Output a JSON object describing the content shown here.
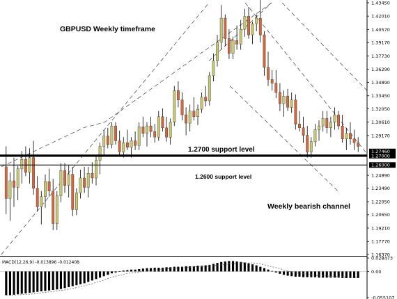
{
  "chart_data": {
    "type": "candlestick",
    "title": "GBPUSD Weekly timeframe",
    "price_axis": {
      "ticks": [
        "1.43450",
        "1.42010",
        "1.40570",
        "1.39170",
        "1.37730",
        "1.36290",
        "1.34890",
        "1.33450",
        "1.32050",
        "1.30610",
        "1.29170",
        "1.27460",
        "1.27000",
        "1.26000",
        "1.24890",
        "1.23490",
        "1.22050",
        "1.20650",
        "1.19210",
        "1.17770",
        "1.16370"
      ],
      "ylim": [
        1.1637,
        1.4345
      ],
      "highlighted": [
        "1.27460",
        "1.27000",
        "1.26000"
      ]
    },
    "annotations": {
      "support_1": "1.2700 support level",
      "support_2": "1.2600 support level",
      "channel": "Weekly bearish channel"
    },
    "support_levels": [
      1.27,
      1.26
    ],
    "macd": {
      "label": "MACD(12,26,9) -0.013896 -0.012408",
      "ticks": [
        "0.028473",
        "0.00",
        "-0.055107"
      ],
      "ylim": [
        -0.055107,
        0.028473
      ]
    },
    "colors": {
      "bull": "#c8c86e",
      "bear": "#d2693c",
      "wick": "#000000",
      "support": "#000000",
      "channel": "#555555",
      "macd_hist": "#000000"
    },
    "candles": [
      [
        1.258,
        1.28,
        1.207,
        1.224
      ],
      [
        1.224,
        1.252,
        1.2,
        1.243
      ],
      [
        1.243,
        1.268,
        1.215,
        1.236
      ],
      [
        1.236,
        1.259,
        1.222,
        1.256
      ],
      [
        1.256,
        1.275,
        1.24,
        1.266
      ],
      [
        1.266,
        1.28,
        1.248,
        1.252
      ],
      [
        1.252,
        1.278,
        1.24,
        1.268
      ],
      [
        1.268,
        1.286,
        1.228,
        1.235
      ],
      [
        1.235,
        1.248,
        1.21,
        1.215
      ],
      [
        1.215,
        1.232,
        1.196,
        1.226
      ],
      [
        1.226,
        1.25,
        1.214,
        1.242
      ],
      [
        1.242,
        1.256,
        1.226,
        1.232
      ],
      [
        1.232,
        1.245,
        1.19,
        1.197
      ],
      [
        1.197,
        1.232,
        1.19,
        1.227
      ],
      [
        1.227,
        1.262,
        1.22,
        1.254
      ],
      [
        1.254,
        1.262,
        1.23,
        1.238
      ],
      [
        1.238,
        1.26,
        1.225,
        1.25
      ],
      [
        1.25,
        1.258,
        1.205,
        1.212
      ],
      [
        1.212,
        1.235,
        1.206,
        1.23
      ],
      [
        1.23,
        1.255,
        1.224,
        1.246
      ],
      [
        1.246,
        1.258,
        1.23,
        1.236
      ],
      [
        1.236,
        1.258,
        1.225,
        1.251
      ],
      [
        1.251,
        1.263,
        1.24,
        1.246
      ],
      [
        1.246,
        1.27,
        1.238,
        1.265
      ],
      [
        1.265,
        1.284,
        1.25,
        1.28
      ],
      [
        1.28,
        1.298,
        1.27,
        1.291
      ],
      [
        1.291,
        1.3,
        1.278,
        1.282
      ],
      [
        1.282,
        1.306,
        1.278,
        1.302
      ],
      [
        1.302,
        1.306,
        1.282,
        1.286
      ],
      [
        1.286,
        1.297,
        1.27,
        1.274
      ],
      [
        1.274,
        1.29,
        1.268,
        1.284
      ],
      [
        1.284,
        1.298,
        1.276,
        1.279
      ],
      [
        1.279,
        1.29,
        1.268,
        1.286
      ],
      [
        1.286,
        1.296,
        1.276,
        1.281
      ],
      [
        1.281,
        1.306,
        1.276,
        1.301
      ],
      [
        1.301,
        1.312,
        1.29,
        1.294
      ],
      [
        1.294,
        1.306,
        1.28,
        1.302
      ],
      [
        1.302,
        1.312,
        1.29,
        1.296
      ],
      [
        1.296,
        1.304,
        1.284,
        1.29
      ],
      [
        1.29,
        1.318,
        1.286,
        1.312
      ],
      [
        1.312,
        1.321,
        1.296,
        1.3
      ],
      [
        1.3,
        1.312,
        1.285,
        1.29
      ],
      [
        1.29,
        1.31,
        1.282,
        1.306
      ],
      [
        1.306,
        1.345,
        1.302,
        1.34
      ],
      [
        1.34,
        1.35,
        1.322,
        1.33
      ],
      [
        1.33,
        1.338,
        1.308,
        1.314
      ],
      [
        1.314,
        1.322,
        1.292,
        1.305
      ],
      [
        1.305,
        1.325,
        1.296,
        1.318
      ],
      [
        1.318,
        1.333,
        1.308,
        1.312
      ],
      [
        1.312,
        1.325,
        1.303,
        1.32
      ],
      [
        1.32,
        1.338,
        1.316,
        1.333
      ],
      [
        1.333,
        1.345,
        1.323,
        1.329
      ],
      [
        1.329,
        1.36,
        1.324,
        1.356
      ],
      [
        1.356,
        1.38,
        1.35,
        1.372
      ],
      [
        1.372,
        1.4,
        1.366,
        1.392
      ],
      [
        1.392,
        1.432,
        1.385,
        1.418
      ],
      [
        1.418,
        1.422,
        1.388,
        1.396
      ],
      [
        1.396,
        1.406,
        1.374,
        1.38
      ],
      [
        1.38,
        1.398,
        1.374,
        1.394
      ],
      [
        1.394,
        1.41,
        1.384,
        1.39
      ],
      [
        1.39,
        1.416,
        1.384,
        1.406
      ],
      [
        1.406,
        1.428,
        1.398,
        1.42
      ],
      [
        1.42,
        1.43,
        1.396,
        1.4
      ],
      [
        1.4,
        1.414,
        1.39,
        1.412
      ],
      [
        1.412,
        1.422,
        1.404,
        1.418
      ],
      [
        1.418,
        1.438,
        1.392,
        1.4
      ],
      [
        1.4,
        1.404,
        1.356,
        1.365
      ],
      [
        1.365,
        1.382,
        1.345,
        1.352
      ],
      [
        1.352,
        1.362,
        1.34,
        1.348
      ],
      [
        1.348,
        1.362,
        1.332,
        1.338
      ],
      [
        1.338,
        1.348,
        1.318,
        1.326
      ],
      [
        1.326,
        1.34,
        1.312,
        1.334
      ],
      [
        1.334,
        1.342,
        1.318,
        1.322
      ],
      [
        1.322,
        1.338,
        1.316,
        1.33
      ],
      [
        1.33,
        1.336,
        1.298,
        1.304
      ],
      [
        1.304,
        1.318,
        1.296,
        1.3
      ],
      [
        1.3,
        1.312,
        1.284,
        1.292
      ],
      [
        1.292,
        1.302,
        1.268,
        1.274
      ],
      [
        1.274,
        1.29,
        1.268,
        1.285
      ],
      [
        1.285,
        1.304,
        1.28,
        1.298
      ],
      [
        1.298,
        1.308,
        1.286,
        1.302
      ],
      [
        1.302,
        1.318,
        1.296,
        1.31
      ],
      [
        1.31,
        1.318,
        1.294,
        1.3
      ],
      [
        1.3,
        1.312,
        1.29,
        1.306
      ],
      [
        1.306,
        1.322,
        1.298,
        1.314
      ],
      [
        1.314,
        1.318,
        1.298,
        1.302
      ],
      [
        1.302,
        1.314,
        1.284,
        1.288
      ],
      [
        1.288,
        1.3,
        1.276,
        1.294
      ],
      [
        1.294,
        1.306,
        1.282,
        1.288
      ],
      [
        1.288,
        1.298,
        1.276,
        1.284
      ],
      [
        1.284,
        1.29,
        1.274,
        1.28
      ]
    ],
    "macd_hist": [
      -0.05,
      -0.05,
      -0.049,
      -0.048,
      -0.047,
      -0.046,
      -0.045,
      -0.044,
      -0.043,
      -0.042,
      -0.041,
      -0.04,
      -0.039,
      -0.038,
      -0.037,
      -0.035,
      -0.033,
      -0.031,
      -0.029,
      -0.027,
      -0.025,
      -0.022,
      -0.019,
      -0.016,
      -0.013,
      -0.01,
      -0.007,
      -0.004,
      -0.002,
      0.0,
      0.002,
      0.003,
      0.004,
      0.004,
      0.005,
      0.006,
      0.007,
      0.007,
      0.008,
      0.008,
      0.008,
      0.009,
      0.009,
      0.01,
      0.01,
      0.01,
      0.011,
      0.011,
      0.011,
      0.012,
      0.012,
      0.013,
      0.014,
      0.016,
      0.018,
      0.02,
      0.021,
      0.022,
      0.022,
      0.021,
      0.02,
      0.019,
      0.017,
      0.015,
      0.013,
      0.01,
      0.007,
      0.004,
      0.001,
      -0.002,
      -0.005,
      -0.007,
      -0.009,
      -0.01,
      -0.011,
      -0.011,
      -0.012,
      -0.012,
      -0.012,
      -0.012,
      -0.013,
      -0.013,
      -0.013,
      -0.013,
      -0.013,
      -0.013,
      -0.014,
      -0.014,
      -0.014,
      -0.014,
      -0.014
    ],
    "macd_signal": [
      -0.05,
      -0.05,
      -0.05,
      -0.049,
      -0.049,
      -0.048,
      -0.048,
      -0.047,
      -0.046,
      -0.045,
      -0.044,
      -0.043,
      -0.042,
      -0.041,
      -0.04,
      -0.039,
      -0.037,
      -0.036,
      -0.034,
      -0.032,
      -0.03,
      -0.028,
      -0.026,
      -0.023,
      -0.021,
      -0.018,
      -0.015,
      -0.012,
      -0.01,
      -0.008,
      -0.006,
      -0.004,
      -0.003,
      -0.002,
      -0.001,
      0.0,
      0.001,
      0.002,
      0.003,
      0.004,
      0.005,
      0.006,
      0.006,
      0.007,
      0.008,
      0.008,
      0.009,
      0.009,
      0.01,
      0.01,
      0.01,
      0.011,
      0.011,
      0.012,
      0.013,
      0.014,
      0.015,
      0.016,
      0.017,
      0.018,
      0.018,
      0.018,
      0.018,
      0.018,
      0.017,
      0.016,
      0.014,
      0.012,
      0.01,
      0.008,
      0.006,
      0.003,
      0.001,
      -0.001,
      -0.003,
      -0.004,
      -0.005,
      -0.006,
      -0.007,
      -0.008,
      -0.009,
      -0.009,
      -0.01,
      -0.01,
      -0.011,
      -0.011,
      -0.011,
      -0.012,
      -0.012,
      -0.012,
      -0.012
    ]
  }
}
